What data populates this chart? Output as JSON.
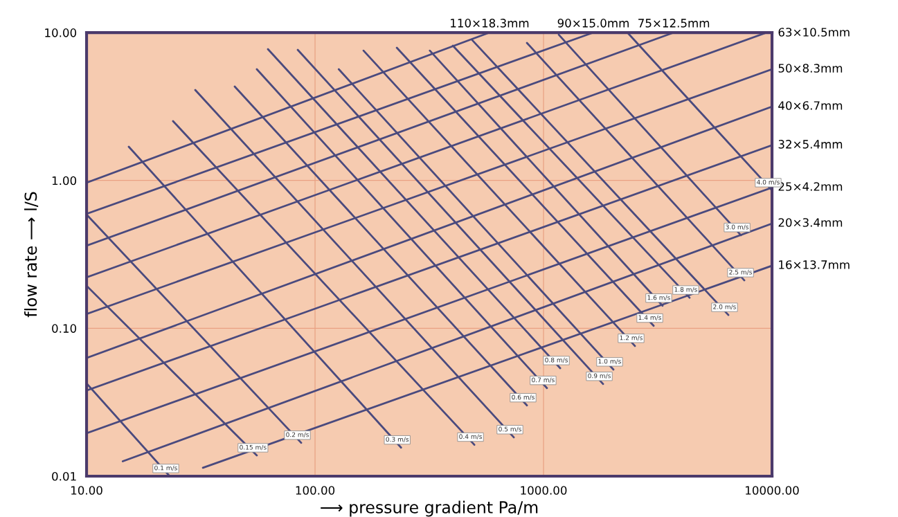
{
  "chart_data": {
    "type": "line",
    "log": "xy",
    "grid": true,
    "legend": false,
    "marker": "none",
    "line_style": "solid",
    "xlabel": "⟶ pressure gradient Pa/m",
    "ylabel": "flow rate ⟶ l/S",
    "xlim": [
      10,
      10000
    ],
    "ylim": [
      0.01,
      10
    ],
    "xticks": [
      {
        "value": 10,
        "label": "10.00"
      },
      {
        "value": 100,
        "label": "100.00"
      },
      {
        "value": 1000,
        "label": "1000.00"
      },
      {
        "value": 10000,
        "label": "10000.00"
      }
    ],
    "yticks": [
      0.01,
      {
        "value": 0.1,
        "label": "0.10"
      },
      {
        "value": 1,
        "label": "1.00"
      },
      {
        "value": 10,
        "label": "10.00"
      }
    ],
    "series": [
      {
        "name": "110×18.3mm",
        "color": "#4a4a7e",
        "x": [
          10,
          580
        ],
        "values": [
          0.965,
          10
        ]
      },
      {
        "name": "90×15.0mm",
        "color": "#4a4a7e",
        "x": [
          10,
          1652
        ],
        "values": [
          0.594,
          10
        ]
      },
      {
        "name": "75×12.5mm",
        "color": "#4a4a7e",
        "x": [
          10,
          3715
        ],
        "values": [
          0.362,
          10
        ]
      },
      {
        "name": "63×10.5mm",
        "color": "#4a4a7e",
        "x": [
          10,
          9300
        ],
        "values": [
          0.221,
          9.9
        ]
      },
      {
        "name": "50×8.3mm",
        "color": "#4a4a7e",
        "x": [
          10,
          10000
        ],
        "values": [
          0.125,
          5.65
        ]
      },
      {
        "name": "40×6.7mm",
        "color": "#4a4a7e",
        "x": [
          10,
          10000
        ],
        "values": [
          0.063,
          3.16
        ]
      },
      {
        "name": "32×5.4mm",
        "color": "#4a4a7e",
        "x": [
          10,
          10000
        ],
        "values": [
          0.038,
          1.73
        ]
      },
      {
        "name": "25×4.2mm",
        "color": "#4a4a7e",
        "x": [
          10,
          10000
        ],
        "values": [
          0.0195,
          0.895
        ]
      },
      {
        "name": "20×3.4mm",
        "color": "#4a4a7e",
        "x": [
          14.4,
          10000
        ],
        "values": [
          0.0126,
          0.511
        ]
      },
      {
        "name": "16×13.7mm",
        "color": "#4a4a7e",
        "x": [
          32.3,
          10000
        ],
        "values": [
          0.0114,
          0.265
        ]
      },
      {
        "name": "0.1 m/s",
        "color": "#4a4a7e",
        "x": [
          10,
          23.1
        ],
        "values": [
          0.0424,
          0.01
        ]
      },
      {
        "name": "0.15 m/s",
        "color": "#4a4a7e",
        "x": [
          10,
          55.6
        ],
        "values": [
          0.194,
          0.0138
        ]
      },
      {
        "name": "0.2 m/s",
        "color": "#4a4a7e",
        "x": [
          10,
          87
        ],
        "values": [
          0.588,
          0.0168
        ]
      },
      {
        "name": "0.3 m/s",
        "color": "#4a4a7e",
        "x": [
          15.3,
          238
        ],
        "values": [
          1.69,
          0.0156
        ]
      },
      {
        "name": "0.4 m/s",
        "color": "#4a4a7e",
        "x": [
          23.9,
          498
        ],
        "values": [
          2.52,
          0.0163
        ]
      },
      {
        "name": "0.5 m/s",
        "color": "#4a4a7e",
        "x": [
          29.9,
          741
        ],
        "values": [
          4.09,
          0.0183
        ]
      },
      {
        "name": "0.6 m/s",
        "color": "#4a4a7e",
        "x": [
          44.5,
          846
        ],
        "values": [
          4.32,
          0.0301
        ]
      },
      {
        "name": "0.7 m/s",
        "color": "#4a4a7e",
        "x": [
          55.6,
          1035
        ],
        "values": [
          5.65,
          0.0394
        ]
      },
      {
        "name": "0.8 m/s",
        "color": "#4a4a7e",
        "x": [
          62.2,
          1183
        ],
        "values": [
          7.73,
          0.0537
        ]
      },
      {
        "name": "0.9 m/s",
        "color": "#4a4a7e",
        "x": [
          84,
          1823
        ],
        "values": [
          7.64,
          0.042
        ]
      },
      {
        "name": "1.0 m/s",
        "color": "#4a4a7e",
        "x": [
          127,
          2023
        ],
        "values": [
          5.65,
          0.0526
        ]
      },
      {
        "name": "1.2 m/s",
        "color": "#4a4a7e",
        "x": [
          163,
          2512
        ],
        "values": [
          7.55,
          0.0759
        ]
      },
      {
        "name": "1.4 m/s",
        "color": "#4a4a7e",
        "x": [
          228,
          3034
        ],
        "values": [
          7.89,
          0.104
        ]
      },
      {
        "name": "1.6 m/s",
        "color": "#4a4a7e",
        "x": [
          318,
          3319
        ],
        "values": [
          7.55,
          0.142
        ]
      },
      {
        "name": "1.8 m/s",
        "color": "#4a4a7e",
        "x": [
          401,
          4357
        ],
        "values": [
          8.15,
          0.161
        ]
      },
      {
        "name": "2.0 m/s",
        "color": "#4a4a7e",
        "x": [
          488,
          6442
        ],
        "values": [
          8.88,
          0.123
        ]
      },
      {
        "name": "2.5 m/s",
        "color": "#4a4a7e",
        "x": [
          846,
          7568
        ],
        "values": [
          8.51,
          0.211
        ]
      },
      {
        "name": "3.0 m/s",
        "color": "#4a4a7e",
        "x": [
          1166,
          7311
        ],
        "values": [
          9.68,
          0.426
        ]
      },
      {
        "name": "4.0 m/s",
        "color": "#4a4a7e",
        "x": [
          2344,
          10000
        ],
        "values": [
          9.9,
          0.857
        ]
      }
    ]
  }
}
